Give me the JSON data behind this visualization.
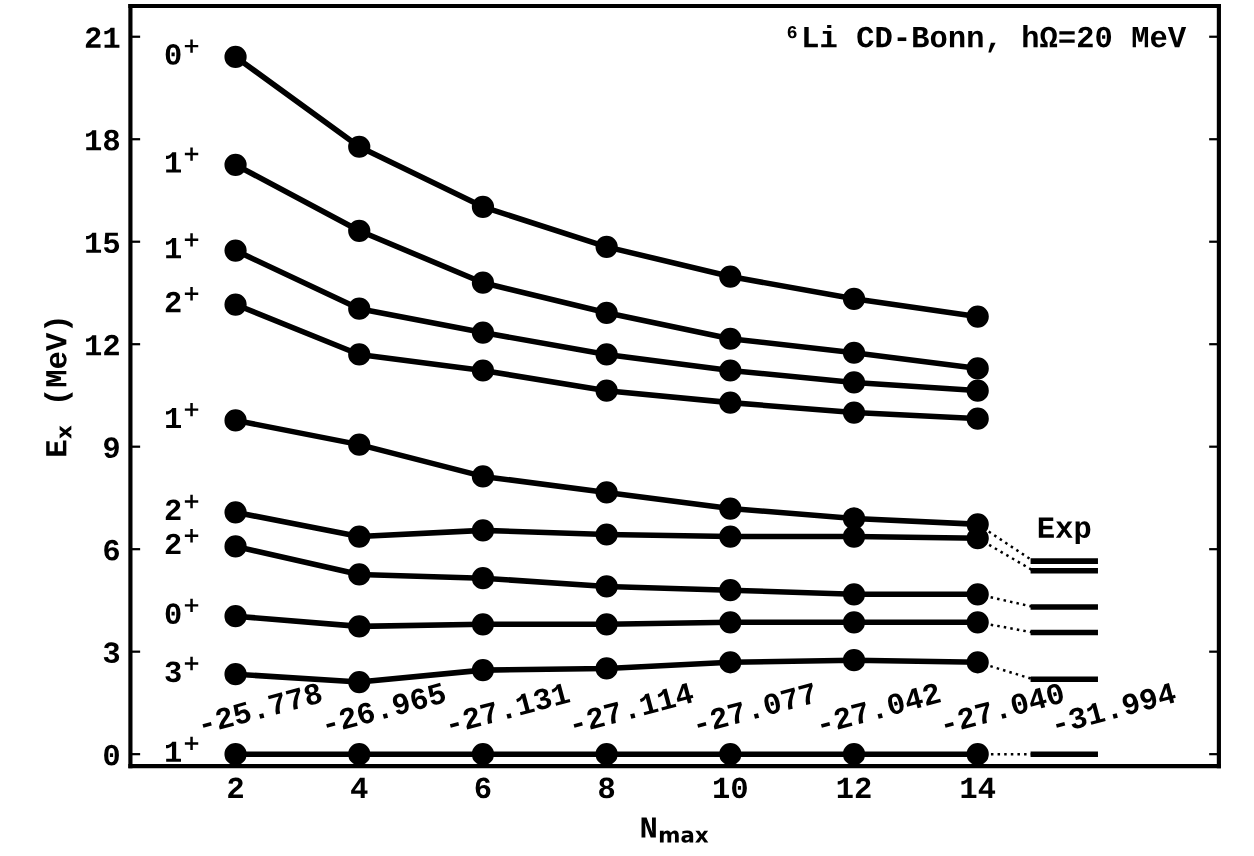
{
  "chart_data": {
    "type": "line",
    "title": "⁶Li CD-Bonn, hΩ=20 MeV",
    "xlabel": "N$_{max}$",
    "ylabel": "E$_{x}$ (MeV)",
    "x": [
      2,
      4,
      6,
      8,
      10,
      12,
      14
    ],
    "series": [
      {
        "name": "0$^{+}$",
        "color": "#000000",
        "values": [
          20.41,
          17.78,
          16.02,
          14.85,
          13.98,
          13.33,
          12.81
        ]
      },
      {
        "name": "1$^{+}$",
        "color": "#000000",
        "values": [
          17.25,
          15.32,
          13.8,
          12.92,
          12.16,
          11.75,
          11.29
        ]
      },
      {
        "name": "1$^{+}$",
        "color": "#000000",
        "values": [
          14.74,
          13.04,
          12.34,
          11.7,
          11.23,
          10.88,
          10.64
        ]
      },
      {
        "name": "2$^{+}$",
        "color": "#000000",
        "values": [
          13.16,
          11.7,
          11.23,
          10.64,
          10.29,
          10.0,
          9.82
        ]
      },
      {
        "name": "1$^{+}$",
        "color": "#000000",
        "values": [
          9.77,
          9.06,
          8.13,
          7.66,
          7.19,
          6.9,
          6.73
        ]
      },
      {
        "name": "2$^{+}$",
        "color": "#000000",
        "values": [
          7.08,
          6.37,
          6.55,
          6.43,
          6.37,
          6.37,
          6.32
        ]
      },
      {
        "name": "2$^{+}$",
        "color": "#000000",
        "values": [
          6.08,
          5.26,
          5.15,
          4.91,
          4.8,
          4.68,
          4.68
        ]
      },
      {
        "name": "0$^{+}$",
        "color": "#000000",
        "values": [
          4.04,
          3.74,
          3.8,
          3.8,
          3.86,
          3.86,
          3.86
        ]
      },
      {
        "name": "3$^{+}$",
        "color": "#000000",
        "values": [
          2.34,
          2.11,
          2.46,
          2.51,
          2.69,
          2.75,
          2.69
        ]
      },
      {
        "name": "1$^{+}$",
        "color": "#000000",
        "values": [
          0,
          0,
          0,
          0,
          0,
          0,
          0
        ]
      },
      {
        "color": "#000000",
        "marker": "none",
        "line_style": "dotted",
        "x": [
          14,
          14.9
        ],
        "values": [
          6.73,
          5.65
        ]
      },
      {
        "color": "#000000",
        "marker": "none",
        "line_style": "dotted",
        "x": [
          14,
          14.9
        ],
        "values": [
          6.32,
          5.37
        ]
      },
      {
        "color": "#000000",
        "marker": "none",
        "line_style": "dotted",
        "x": [
          14,
          14.9
        ],
        "values": [
          4.68,
          4.31
        ]
      },
      {
        "color": "#000000",
        "marker": "none",
        "line_style": "dotted",
        "x": [
          14,
          14.9
        ],
        "values": [
          3.86,
          3.56
        ]
      },
      {
        "color": "#000000",
        "marker": "none",
        "line_style": "dotted",
        "x": [
          14,
          14.9
        ],
        "values": [
          2.69,
          2.19
        ]
      },
      {
        "color": "#000000",
        "marker": "none",
        "line_style": "dotted",
        "x": [
          14,
          14.9
        ],
        "values": [
          0,
          0
        ]
      },
      {
        "name": "Exp",
        "color": "#000000",
        "marker": "none",
        "x": [
          14.9,
          15.9
        ],
        "values": [
          5.65,
          5.65
        ]
      },
      {
        "color": "#000000",
        "marker": "none",
        "x": [
          14.9,
          15.9
        ],
        "values": [
          5.37,
          5.37
        ]
      },
      {
        "color": "#000000",
        "marker": "none",
        "x": [
          14.9,
          15.9
        ],
        "values": [
          4.31,
          4.31
        ]
      },
      {
        "color": "#000000",
        "marker": "none",
        "x": [
          14.9,
          15.9
        ],
        "values": [
          3.56,
          3.56
        ]
      },
      {
        "color": "#000000",
        "marker": "none",
        "x": [
          14.9,
          15.9
        ],
        "values": [
          2.19,
          2.19
        ]
      },
      {
        "color": "#000000",
        "marker": "none",
        "x": [
          14.9,
          15.9
        ],
        "values": [
          0,
          0
        ]
      }
    ],
    "annotations": [
      "-25.778",
      "-26.965",
      "-27.131",
      "-27.114",
      "-27.077",
      "-27.042",
      "-27.040",
      "-31.994"
    ],
    "xlim": [
      0.3,
      17.9
    ],
    "ylim": [
      -0.35,
      21.9
    ],
    "xticks": [
      2,
      4,
      6,
      8,
      10,
      12,
      14
    ],
    "yticks": [
      0,
      3,
      6,
      9,
      12,
      15,
      18,
      21
    ],
    "marker": "circle",
    "line_style": "solid",
    "grid": false,
    "legend": "left"
  }
}
